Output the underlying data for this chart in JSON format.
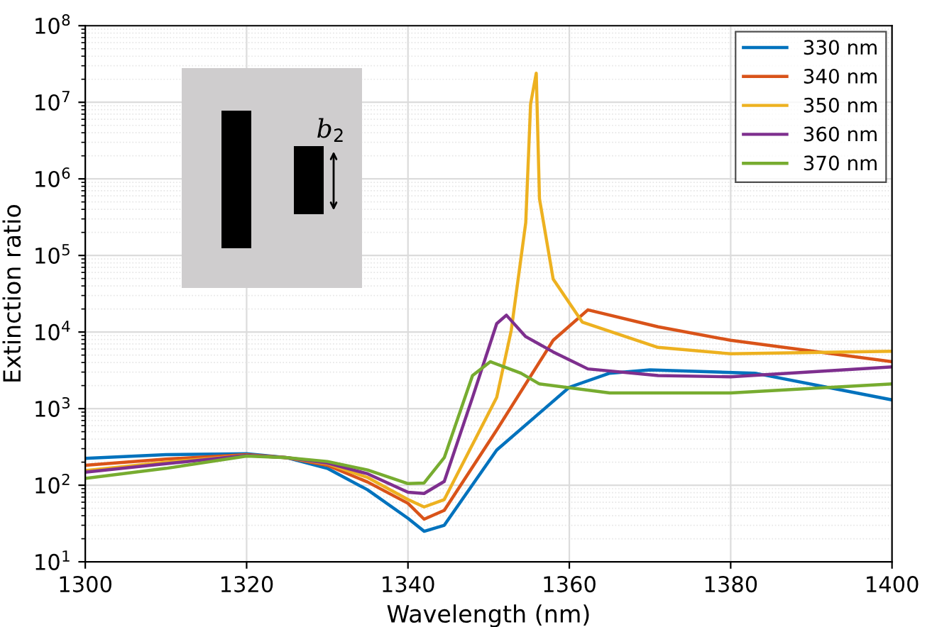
{
  "chart_data": {
    "type": "line",
    "xlabel": "Wavelength (nm)",
    "ylabel": "Extinction ratio",
    "annotations": [
      "b$_{2}$"
    ],
    "log": "y",
    "grid": true,
    "legend": "top right",
    "line_style": "solid",
    "marker": "none",
    "xlim": [
      1300,
      1400
    ],
    "xticks": [
      1300,
      1320,
      1340,
      1360,
      1380,
      1400
    ],
    "ylim": [
      10,
      100000000
    ],
    "yticks": [
      {
        "value": 10,
        "label": "10$^{1}$"
      },
      {
        "value": 100,
        "label": "10$^{2}$"
      },
      {
        "value": 1000,
        "label": "10$^{3}$"
      },
      {
        "value": 10000,
        "label": "10$^{4}$"
      },
      {
        "value": 100000,
        "label": "10$^{5}$"
      },
      {
        "value": 1000000,
        "label": "10$^{6}$"
      },
      {
        "value": 10000000,
        "label": "10$^{7}$"
      },
      {
        "value": 100000000,
        "label": "10$^{8}$"
      }
    ],
    "series": [
      {
        "name": "330 nm",
        "color": "#0072bd",
        "x": [
          1300,
          1310,
          1320,
          1325,
          1330,
          1335,
          1340,
          1342,
          1344.5,
          1351,
          1360,
          1365,
          1370,
          1383,
          1400
        ],
        "values": [
          224,
          251,
          257,
          229,
          166,
          87,
          37,
          25,
          30,
          288,
          1900,
          2900,
          3200,
          2900,
          1300
        ]
      },
      {
        "name": "340 nm",
        "color": "#d95319",
        "x": [
          1300,
          1310,
          1320,
          1325,
          1330,
          1335,
          1340,
          1342,
          1344.5,
          1351,
          1358,
          1362.3,
          1371,
          1380,
          1400
        ],
        "values": [
          182,
          219,
          251,
          229,
          182,
          110,
          58,
          36,
          47,
          525,
          7800,
          19500,
          11700,
          7800,
          4100
        ]
      },
      {
        "name": "350 nm",
        "color": "#edb120",
        "x": [
          1300,
          1310,
          1320,
          1325,
          1330,
          1335,
          1340,
          1342,
          1344.5,
          1351,
          1352.8,
          1354.6,
          1355.2,
          1355.9,
          1356.3,
          1358,
          1361.6,
          1371,
          1380,
          1400
        ],
        "values": [
          155,
          200,
          245,
          229,
          191,
          126,
          65,
          52,
          65,
          1400,
          10500,
          269000,
          9500000,
          24000000,
          550000,
          49000,
          13500,
          6300,
          5200,
          5600
        ]
      },
      {
        "name": "360 nm",
        "color": "#7e2f8e",
        "x": [
          1300,
          1310,
          1320,
          1325,
          1330,
          1335,
          1340,
          1342,
          1344.5,
          1348,
          1351,
          1352.2,
          1354.6,
          1358,
          1362.3,
          1371,
          1380,
          1400
        ],
        "values": [
          148,
          191,
          245,
          229,
          195,
          141,
          81,
          78,
          112,
          1400,
          12900,
          16600,
          8700,
          5500,
          3300,
          2700,
          2600,
          3500
        ]
      },
      {
        "name": "370 nm",
        "color": "#77ac30",
        "x": [
          1300,
          1310,
          1320,
          1325,
          1330,
          1335,
          1340,
          1342,
          1344.5,
          1348,
          1350.2,
          1354,
          1356.3,
          1365,
          1380,
          1400
        ],
        "values": [
          123,
          166,
          240,
          229,
          204,
          158,
          105,
          107,
          229,
          2700,
          4100,
          2900,
          2100,
          1600,
          1600,
          2100
        ]
      }
    ]
  }
}
